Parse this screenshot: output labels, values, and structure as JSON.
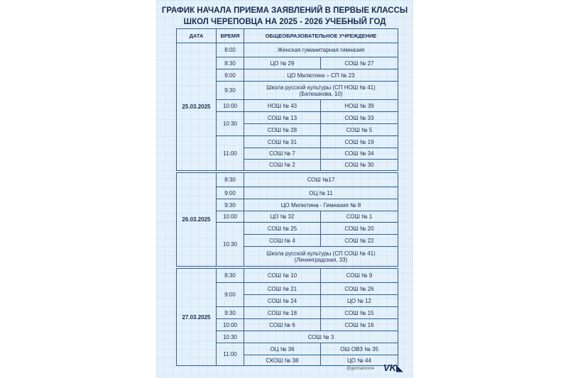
{
  "title_line1": "ГРАФИК НАЧАЛА ПРИЕМА ЗАЯВЛЕНИЙ В ПЕРВЫЕ КЛАССЫ",
  "title_line2": "ШКОЛ ЧЕРЕПОВЦА НА 2025 - 2026 УЧЕБНЫЙ ГОД",
  "headers": [
    "ДАТА",
    "ВРЕМЯ",
    "ОБЩЕОБРАЗОВАТЕЛЬНОЕ УЧРЕЖДЕНИЕ"
  ],
  "blocks": [
    {
      "date": "25.03.2025",
      "slots": [
        {
          "time": "8:00",
          "rows": [
            [
              "Женская гуманитарная гимназия"
            ]
          ]
        },
        {
          "time": "8:30",
          "rows": [
            [
              "ЦО № 29",
              "СОШ № 27"
            ]
          ]
        },
        {
          "time": "9:00",
          "rows": [
            [
              "ЦО Милютина – СП № 23"
            ]
          ]
        },
        {
          "time": "9:30",
          "rows": [
            [
              "Школа русской культуры (СП НОШ № 41)\n(Батюшкова, 10)"
            ]
          ]
        },
        {
          "time": "10:00",
          "rows": [
            [
              "НОШ № 43",
              "НОШ № 39"
            ]
          ]
        },
        {
          "time": "10:30",
          "rows": [
            [
              "СОШ № 13",
              "СОШ № 33"
            ],
            [
              "СОШ № 28",
              "СОШ № 5"
            ]
          ]
        },
        {
          "time": "11:00",
          "rows": [
            [
              "СОШ № 31",
              "СОШ № 19"
            ],
            [
              "СОШ № 7",
              "СОШ № 34"
            ],
            [
              "СОШ № 2",
              "СОШ № 30"
            ]
          ]
        }
      ]
    },
    {
      "date": "26.03.2025",
      "slots": [
        {
          "time": "8:30",
          "rows": [
            [
              "СОШ №17"
            ]
          ]
        },
        {
          "time": "9:00",
          "rows": [
            [
              "ОЦ № 11"
            ]
          ]
        },
        {
          "time": "9:30",
          "rows": [
            [
              "ЦО Милютина - Гимназия № 8"
            ]
          ]
        },
        {
          "time": "10:00",
          "rows": [
            [
              "ЦО № 32",
              "СОШ № 1"
            ]
          ]
        },
        {
          "time": "10:30",
          "rows": [
            [
              "СОШ № 25",
              "СОШ № 20"
            ],
            [
              "СОШ № 4",
              "СОШ № 22"
            ],
            [
              "Школа русской культуры (СП СОШ № 41)\n(Ленинградская, 33)"
            ]
          ]
        }
      ]
    },
    {
      "date": "27.03.2025",
      "slots": [
        {
          "time": "8:30",
          "rows": [
            [
              "СОШ № 10",
              "СОШ № 9"
            ]
          ]
        },
        {
          "time": "9:00",
          "rows": [
            [
              "СОШ № 21",
              "СОШ № 26"
            ],
            [
              "СОШ № 24",
              "ЦО № 12"
            ]
          ]
        },
        {
          "time": "9:30",
          "rows": [
            [
              "СОШ № 18",
              "СОШ № 15"
            ]
          ]
        },
        {
          "time": "10:00",
          "rows": [
            [
              "СОШ № 6",
              "СОШ № 16"
            ]
          ]
        },
        {
          "time": "10:30",
          "rows": [
            [
              "СОШ № 3"
            ]
          ]
        },
        {
          "time": "11:00",
          "rows": [
            [
              "ОЦ № 36",
              "ОШ ОВЗ № 35"
            ],
            [
              "СКОШ № 38",
              "ЦО № 44"
            ]
          ]
        }
      ]
    }
  ],
  "signature": "@germanovve",
  "logo_text": "VK",
  "colors": {
    "panel": "#e4f1fb",
    "border": "#2f5f8e",
    "text": "#1b2b4d"
  }
}
